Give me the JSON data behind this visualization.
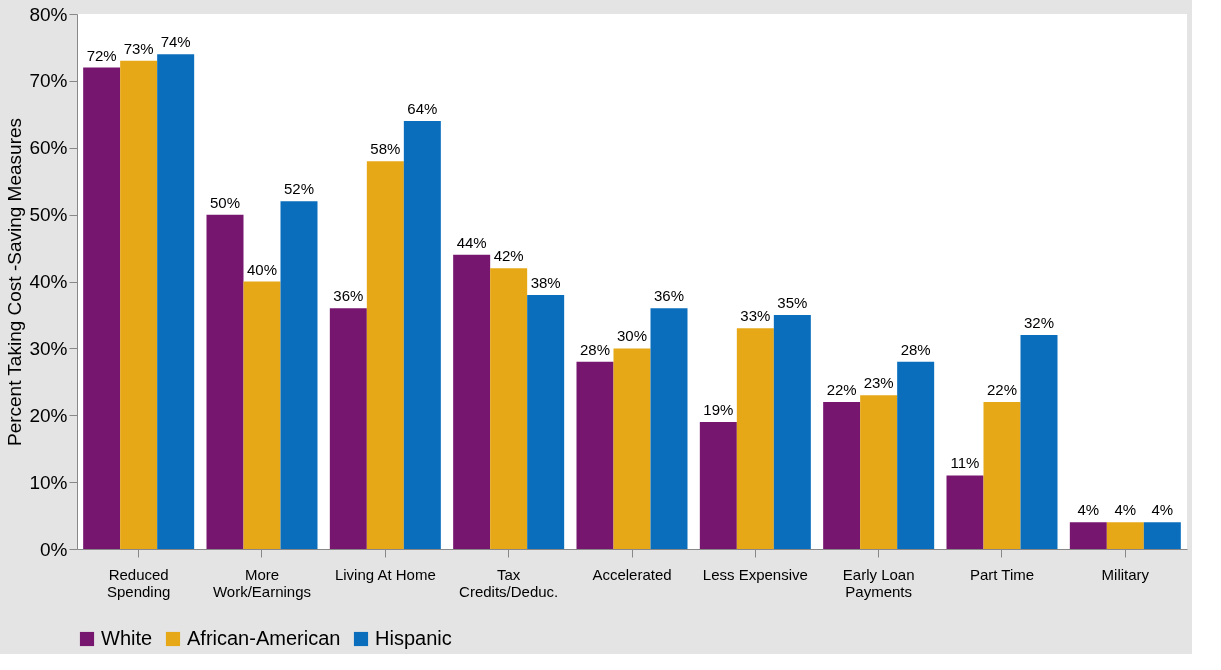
{
  "chart_data": {
    "type": "bar",
    "ylabel": "Percent Taking Cost  -Saving Measures",
    "categories": [
      "Reduced\nSpending",
      "More\nWork/Earnings",
      "Living At Home",
      "Tax\nCredits/Deduc.",
      "Accelerated",
      "Less Expensive",
      "Early Loan\nPayments",
      "Part Time",
      "Military"
    ],
    "series": [
      {
        "name": "White",
        "color": "#76166f",
        "values": [
          72,
          50,
          36,
          44,
          28,
          19,
          22,
          11,
          4
        ],
        "value_labels": [
          "72%",
          "50%",
          "36%",
          "44%",
          "28%",
          "19%",
          "22%",
          "11%",
          "4%"
        ]
      },
      {
        "name": "African-American",
        "color": "#e6a817",
        "values": [
          73,
          40,
          58,
          42,
          30,
          33,
          23,
          22,
          4
        ],
        "value_labels": [
          "73%",
          "40%",
          "58%",
          "42%",
          "30%",
          "33%",
          "23%",
          "22%",
          "4%"
        ]
      },
      {
        "name": "Hispanic",
        "color": "#0a6ebd",
        "values": [
          74,
          52,
          64,
          38,
          36,
          35,
          28,
          32,
          4
        ],
        "value_labels": [
          "74%",
          "52%",
          "64%",
          "38%",
          "36%",
          "35%",
          "28%",
          "32%",
          "4%"
        ]
      }
    ],
    "ylim": [
      0,
      80
    ],
    "yticks": [
      {
        "value": 0,
        "label": "0%"
      },
      {
        "value": 10,
        "label": "10%"
      },
      {
        "value": 20,
        "label": "20%"
      },
      {
        "value": 30,
        "label": "30%"
      },
      {
        "value": 40,
        "label": "40%"
      },
      {
        "value": 50,
        "label": "50%"
      },
      {
        "value": 60,
        "label": "60%"
      },
      {
        "value": 70,
        "label": "70%"
      },
      {
        "value": 80,
        "label": "80%"
      }
    ],
    "grid": false,
    "legend": "bottom"
  }
}
